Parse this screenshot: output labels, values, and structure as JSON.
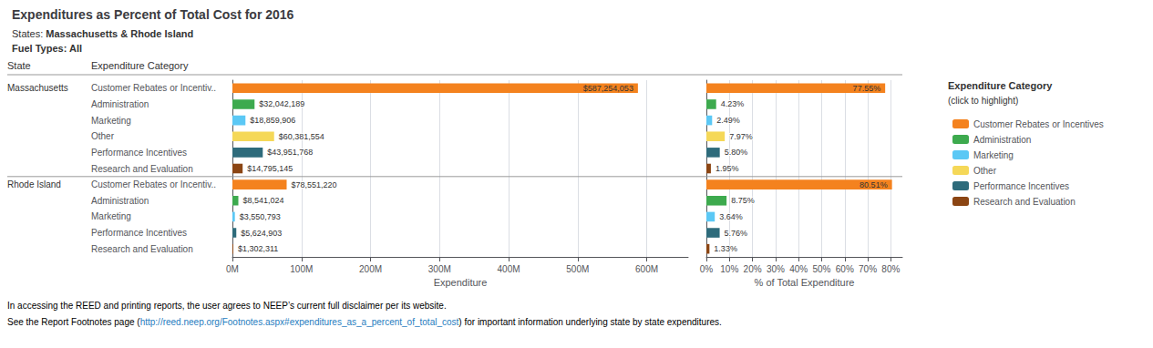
{
  "title": "Expenditures as Percent of Total Cost for 2016",
  "subtitles": [
    {
      "plain": "States:",
      "bold": "Massachusetts & Rhode Island"
    },
    {
      "bold": "Fuel Types: All"
    }
  ],
  "column_headers": [
    "State",
    "Expenditure Category"
  ],
  "footnotes": [
    [
      "In accessing the REED and printing reports, the user agrees to NEEP’s current full disclaimer per its website."
    ],
    [
      "See the Report Footnotes page (",
      "http://reed.neep.org/Footnotes.aspx#expenditures_as_a_percent_of_total_cost",
      ") for important information underlying state by state expenditures."
    ]
  ],
  "chart_data": [
    {
      "type": "bar",
      "orientation": "horizontal",
      "categories": [
        "Customer Rebates or Incentiv..",
        "Administration",
        "Marketing",
        "Other",
        "Performance Incentives",
        "Research and Evaluation",
        "Customer Rebates or Incentiv..",
        "Administration",
        "Marketing",
        "Performance Incentives",
        "Research and Evaluation"
      ],
      "group_labels": [
        "Massachusetts",
        null,
        null,
        null,
        null,
        null,
        "Rhode Island",
        null,
        null,
        null,
        null
      ],
      "xlabel": "Expenditure",
      "xlim": [
        0,
        660000000
      ],
      "xticks": [
        {
          "value": 0,
          "label": "0M"
        },
        {
          "value": 100000000,
          "label": "100M"
        },
        {
          "value": 200000000,
          "label": "200M"
        },
        {
          "value": 300000000,
          "label": "300M"
        },
        {
          "value": 400000000,
          "label": "400M"
        },
        {
          "value": 500000000,
          "label": "500M"
        },
        {
          "value": 600000000,
          "label": "600M"
        }
      ],
      "grid": true,
      "data_labels": true,
      "series": [
        {
          "name": "Customer Rebates or Incentives",
          "color": "#F4821E",
          "values": [
            587254053,
            null,
            null,
            null,
            null,
            null,
            78551220,
            null,
            null,
            null,
            null
          ],
          "value_labels": [
            "$587,254,053",
            null,
            null,
            null,
            null,
            null,
            "$78,551,220",
            null,
            null,
            null,
            null
          ]
        },
        {
          "name": "Administration",
          "color": "#3DAA4E",
          "values": [
            null,
            32042189,
            null,
            null,
            null,
            null,
            null,
            8541024,
            null,
            null,
            null
          ],
          "value_labels": [
            null,
            "$32,042,189",
            null,
            null,
            null,
            null,
            null,
            "$8,541,024",
            null,
            null,
            null
          ]
        },
        {
          "name": "Marketing",
          "color": "#5BC8F5",
          "values": [
            null,
            null,
            18859906,
            null,
            null,
            null,
            null,
            null,
            3550793,
            null,
            null
          ],
          "value_labels": [
            null,
            null,
            "$18,859,906",
            null,
            null,
            null,
            null,
            null,
            "$3,550,793",
            null,
            null
          ]
        },
        {
          "name": "Other",
          "color": "#F5D858",
          "values": [
            null,
            null,
            null,
            60381554,
            null,
            null,
            null,
            null,
            null,
            null,
            null
          ],
          "value_labels": [
            null,
            null,
            null,
            "$60,381,554",
            null,
            null,
            null,
            null,
            null,
            null,
            null
          ]
        },
        {
          "name": "Performance Incentives",
          "color": "#2E6B7B",
          "values": [
            null,
            null,
            null,
            null,
            43951768,
            null,
            null,
            null,
            null,
            5624903,
            null
          ],
          "value_labels": [
            null,
            null,
            null,
            null,
            "$43,951,768",
            null,
            null,
            null,
            null,
            "$5,624,903",
            null
          ]
        },
        {
          "name": "Research and Evaluation",
          "color": "#8B4513",
          "values": [
            null,
            null,
            null,
            null,
            null,
            14795145,
            null,
            null,
            null,
            null,
            1302311
          ],
          "value_labels": [
            null,
            null,
            null,
            null,
            null,
            "$14,795,145",
            null,
            null,
            null,
            null,
            "$1,302,311"
          ]
        }
      ]
    },
    {
      "type": "bar",
      "orientation": "horizontal",
      "categories": [
        "Customer Rebates or Incentiv..",
        "Administration",
        "Marketing",
        "Other",
        "Performance Incentives",
        "Research and Evaluation",
        "Customer Rebates or Incentiv..",
        "Administration",
        "Marketing",
        "Performance Incentives",
        "Research and Evaluation"
      ],
      "tick_labels": "x",
      "xlabel": "% of Total Expenditure",
      "xlim": [
        0,
        85
      ],
      "xticks": [
        {
          "value": 0,
          "label": "0%"
        },
        {
          "value": 10,
          "label": "10%"
        },
        {
          "value": 20,
          "label": "20%"
        },
        {
          "value": 30,
          "label": "30%"
        },
        {
          "value": 40,
          "label": "40%"
        },
        {
          "value": 50,
          "label": "50%"
        },
        {
          "value": 60,
          "label": "60%"
        },
        {
          "value": 70,
          "label": "70%"
        },
        {
          "value": 80,
          "label": "80%"
        }
      ],
      "grid": true,
      "data_labels": true,
      "legend": "right",
      "legend_title": [
        "Expenditure Category",
        "(click to highlight)"
      ],
      "series": [
        {
          "name": "Customer Rebates or Incentives",
          "color": "#F4821E",
          "values": [
            77.55,
            null,
            null,
            null,
            null,
            null,
            80.51,
            null,
            null,
            null,
            null
          ],
          "value_labels": [
            "77.55%",
            null,
            null,
            null,
            null,
            null,
            "80.51%",
            null,
            null,
            null,
            null
          ]
        },
        {
          "name": "Administration",
          "color": "#3DAA4E",
          "values": [
            null,
            4.23,
            null,
            null,
            null,
            null,
            null,
            8.75,
            null,
            null,
            null
          ],
          "value_labels": [
            null,
            "4.23%",
            null,
            null,
            null,
            null,
            null,
            "8.75%",
            null,
            null,
            null
          ]
        },
        {
          "name": "Marketing",
          "color": "#5BC8F5",
          "values": [
            null,
            null,
            2.49,
            null,
            null,
            null,
            null,
            null,
            3.64,
            null,
            null
          ],
          "value_labels": [
            null,
            null,
            "2.49%",
            null,
            null,
            null,
            null,
            null,
            "3.64%",
            null,
            null
          ]
        },
        {
          "name": "Other",
          "color": "#F5D858",
          "values": [
            null,
            null,
            null,
            7.97,
            null,
            null,
            null,
            null,
            null,
            null,
            null
          ],
          "value_labels": [
            null,
            null,
            null,
            "7.97%",
            null,
            null,
            null,
            null,
            null,
            null,
            null
          ]
        },
        {
          "name": "Performance Incentives",
          "color": "#2E6B7B",
          "values": [
            null,
            null,
            null,
            null,
            5.8,
            null,
            null,
            null,
            null,
            5.76,
            null
          ],
          "value_labels": [
            null,
            null,
            null,
            null,
            "5.80%",
            null,
            null,
            null,
            null,
            "5.76%",
            null
          ]
        },
        {
          "name": "Research and Evaluation",
          "color": "#8B4513",
          "values": [
            null,
            null,
            null,
            null,
            null,
            1.95,
            null,
            null,
            null,
            null,
            1.33
          ],
          "value_labels": [
            null,
            null,
            null,
            null,
            null,
            "1.95%",
            null,
            null,
            null,
            null,
            "1.33%"
          ]
        }
      ]
    }
  ]
}
